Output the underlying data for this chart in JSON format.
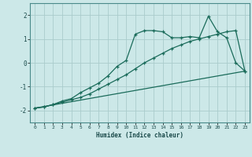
{
  "title": "",
  "xlabel": "Humidex (Indice chaleur)",
  "bg_color": "#cce8e8",
  "grid_color": "#aacccc",
  "line_color": "#1a6b5a",
  "xlim": [
    -0.5,
    23.5
  ],
  "ylim": [
    -2.5,
    2.5
  ],
  "xticks": [
    0,
    1,
    2,
    3,
    4,
    5,
    6,
    7,
    8,
    9,
    10,
    11,
    12,
    13,
    14,
    15,
    16,
    17,
    18,
    19,
    20,
    21,
    22,
    23
  ],
  "yticks": [
    -2,
    -1,
    0,
    1,
    2
  ],
  "line1_x": [
    0,
    1,
    2,
    3,
    4,
    5,
    6,
    7,
    8,
    9,
    10,
    11,
    12,
    13,
    14,
    15,
    16,
    17,
    18,
    19,
    20,
    21,
    22,
    23
  ],
  "line1_y": [
    -1.9,
    -1.85,
    -1.75,
    -1.65,
    -1.55,
    -1.45,
    -1.3,
    -1.1,
    -0.9,
    -0.7,
    -0.5,
    -0.25,
    0.0,
    0.2,
    0.4,
    0.6,
    0.75,
    0.9,
    1.0,
    1.1,
    1.2,
    1.3,
    1.35,
    -0.35
  ],
  "line2_x": [
    0,
    1,
    2,
    3,
    4,
    5,
    6,
    7,
    8,
    9,
    10,
    11,
    12,
    13,
    14,
    15,
    16,
    17,
    18,
    19,
    20,
    21,
    22,
    23
  ],
  "line2_y": [
    -1.9,
    -1.85,
    -1.75,
    -1.6,
    -1.5,
    -1.25,
    -1.05,
    -0.85,
    -0.55,
    -0.15,
    0.1,
    1.2,
    1.35,
    1.35,
    1.3,
    1.05,
    1.05,
    1.1,
    1.05,
    1.95,
    1.3,
    1.05,
    0.0,
    -0.35
  ],
  "line3_x": [
    0,
    23
  ],
  "line3_y": [
    -1.9,
    -0.35
  ]
}
